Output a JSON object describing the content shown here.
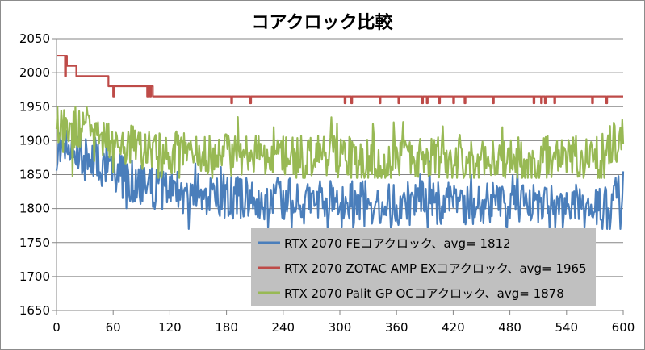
{
  "chart_data": {
    "type": "line",
    "title": "コアクロック比較",
    "xlabel": "",
    "ylabel": "",
    "xlim": [
      0,
      600
    ],
    "ylim": [
      1650,
      2050
    ],
    "x_ticks": [
      0,
      60,
      120,
      180,
      240,
      300,
      360,
      420,
      480,
      540,
      600
    ],
    "y_ticks": [
      1650,
      1700,
      1750,
      1800,
      1850,
      1900,
      1950,
      2000,
      2050
    ],
    "grid": "horizontal",
    "legend_position": "bottom-right",
    "legend_background": "#c0c0c0",
    "series": [
      {
        "name": "RTX 2070 FEコアクロック、avg= 1812",
        "color": "#4a7ebb",
        "x": [
          0,
          5,
          10,
          15,
          20,
          25,
          30,
          40,
          50,
          60,
          70,
          80,
          90,
          100,
          110,
          120,
          140,
          160,
          180,
          200,
          220,
          240,
          260,
          280,
          300,
          330,
          360,
          390,
          420,
          450,
          480,
          510,
          540,
          570,
          600
        ],
        "values": [
          1900,
          1885,
          1910,
          1895,
          1880,
          1890,
          1870,
          1875,
          1860,
          1855,
          1845,
          1840,
          1835,
          1830,
          1825,
          1828,
          1822,
          1820,
          1818,
          1815,
          1812,
          1814,
          1810,
          1812,
          1808,
          1810,
          1806,
          1809,
          1807,
          1808,
          1805,
          1808,
          1807,
          1805,
          1825
        ],
        "fluctuation_min": 1770,
        "fluctuation_max": 1915
      },
      {
        "name": "RTX 2070 ZOTAC AMP EXコアクロック、avg= 1965",
        "color": "#be4b48",
        "x": [
          0,
          10,
          11,
          20,
          21,
          32,
          33,
          50,
          54,
          55,
          100,
          102,
          600
        ],
        "values": [
          2025,
          2025,
          2010,
          2010,
          1995,
          1995,
          1995,
          1995,
          1995,
          1980,
          1980,
          1965,
          1965
        ],
        "dips_x": [
          9,
          60,
          96,
          99,
          102,
          105,
          185,
          205,
          305,
          312,
          342,
          362,
          387,
          392,
          405,
          420,
          432,
          462,
          505,
          513,
          517,
          527,
          567,
          582
        ],
        "dip_values": [
          1995,
          1965,
          1965,
          1965,
          1965,
          1965,
          1955,
          1955,
          1955,
          1955,
          1955,
          1955,
          1955,
          1955,
          1955,
          1955,
          1955,
          1955,
          1955,
          1955,
          1955,
          1955,
          1955,
          1955
        ]
      },
      {
        "name": "RTX 2070 Palit GP OCコアクロック、avg= 1878",
        "color": "#98b954",
        "x": [
          0,
          10,
          20,
          40,
          60,
          80,
          100,
          120,
          150,
          180,
          210,
          240,
          270,
          300,
          330,
          360,
          390,
          420,
          450,
          480,
          510,
          540,
          570,
          600
        ],
        "values": [
          1925,
          1920,
          1915,
          1905,
          1895,
          1890,
          1885,
          1883,
          1880,
          1880,
          1878,
          1877,
          1876,
          1876,
          1875,
          1876,
          1875,
          1875,
          1876,
          1875,
          1875,
          1876,
          1875,
          1905
        ],
        "fluctuation_min": 1845,
        "fluctuation_max": 1950
      }
    ]
  }
}
